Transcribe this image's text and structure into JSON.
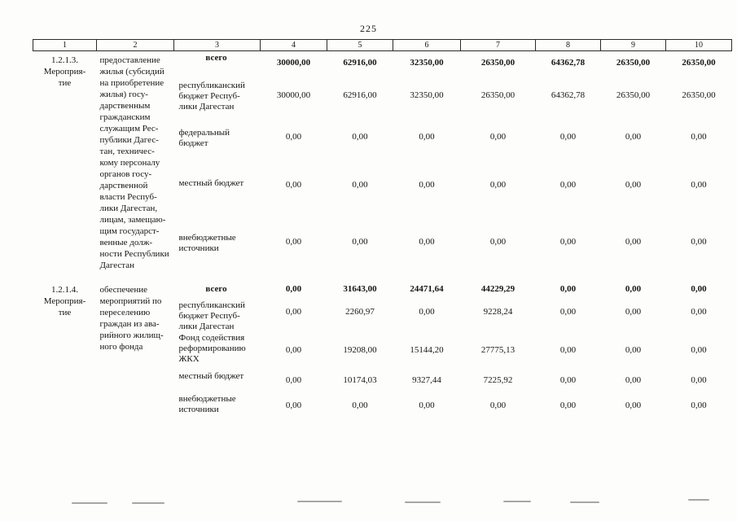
{
  "page": {
    "number": "225"
  },
  "table": {
    "column_headers": [
      "1",
      "2",
      "3",
      "4",
      "5",
      "6",
      "7",
      "8",
      "9",
      "10"
    ],
    "sections": [
      {
        "code": "1.2.1.3.",
        "code_label": "Мероприя-\nтие",
        "description": "предоставление\nжилья (субсидий\nна приобретение\nжилья) госу-\nдарственным\nгражданским\nслужащим Рес-\nпублики Дагес-\nтан, техничес-\nкому персоналу\nорганов госу-\nдарственной\nвласти Респуб-\nлики Дагестан,\nлицам, замещаю-\nщим государст-\nвенные долж-\nности Республики\nДагестан",
        "rows": [
          {
            "source": "всего",
            "bold": true,
            "values": [
              "30000,00",
              "62916,00",
              "32350,00",
              "26350,00",
              "64362,78",
              "26350,00",
              "26350,00"
            ]
          },
          {
            "source": "республиканский\nбюджет  Респуб-\nлики Дагестан",
            "bold": false,
            "values": [
              "30000,00",
              "62916,00",
              "32350,00",
              "26350,00",
              "64362,78",
              "26350,00",
              "26350,00"
            ]
          },
          {
            "source": "федеральный\nбюджет",
            "bold": false,
            "values": [
              "0,00",
              "0,00",
              "0,00",
              "0,00",
              "0,00",
              "0,00",
              "0,00"
            ]
          },
          {
            "source": "местный бюджет",
            "bold": false,
            "values": [
              "0,00",
              "0,00",
              "0,00",
              "0,00",
              "0,00",
              "0,00",
              "0,00"
            ]
          },
          {
            "source": "внебюджетные\nисточники",
            "bold": false,
            "values": [
              "0,00",
              "0,00",
              "0,00",
              "0,00",
              "0,00",
              "0,00",
              "0,00"
            ]
          }
        ]
      },
      {
        "code": "1.2.1.4.",
        "code_label": "Мероприя-\nтие",
        "description": "обеспечение\nмероприятий по\nпереселению\nграждан из ава-\nрийного жилищ-\nного фонда",
        "rows": [
          {
            "source": "всего",
            "bold": true,
            "values": [
              "0,00",
              "31643,00",
              "24471,64",
              "44229,29",
              "0,00",
              "0,00",
              "0,00"
            ]
          },
          {
            "source": "республиканский\nбюджет   Респуб-\nлики Дагестан",
            "bold": false,
            "values": [
              "0,00",
              "2260,97",
              "0,00",
              "9228,24",
              "0,00",
              "0,00",
              "0,00"
            ]
          },
          {
            "source": "Фонд  содействия\nреформированию\nЖКХ",
            "bold": false,
            "values": [
              "0,00",
              "19208,00",
              "15144,20",
              "27775,13",
              "0,00",
              "0,00",
              "0,00"
            ]
          },
          {
            "source": "местный бюджет",
            "bold": false,
            "values": [
              "0,00",
              "10174,03",
              "9327,44",
              "7225,92",
              "0,00",
              "0,00",
              "0,00"
            ]
          },
          {
            "source": "внебюджетные\nисточники",
            "bold": false,
            "values": [
              "0,00",
              "0,00",
              "0,00",
              "0,00",
              "0,00",
              "0,00",
              "0,00"
            ]
          }
        ]
      }
    ]
  }
}
